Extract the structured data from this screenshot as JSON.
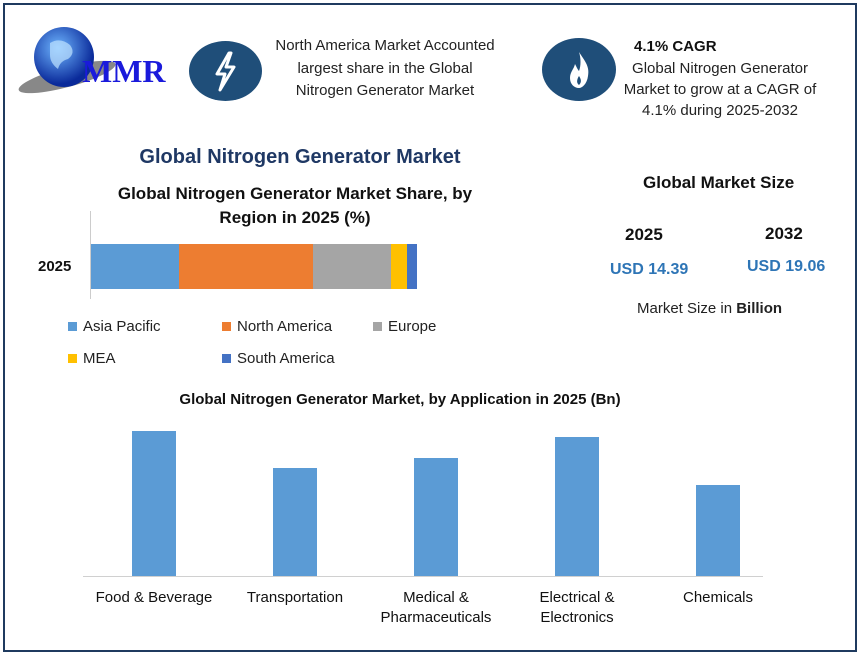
{
  "logo": {
    "text": "MMR"
  },
  "highlight1": {
    "icon": "lightning-icon",
    "text": "North America Market Accounted largest share in the Global Nitrogen Generator Market"
  },
  "highlight2": {
    "icon": "flame-icon",
    "title": "4.1% CAGR",
    "text": "Global Nitrogen Generator Market to grow at a CAGR of 4.1% during 2025-2032"
  },
  "main_title": "Global Nitrogen Generator Market",
  "market_size": {
    "title": "Global Market Size",
    "year1": "2025",
    "value1": "USD 14.39",
    "year2": "2032",
    "value2": "USD 19.06",
    "note_prefix": "Market Size in ",
    "note_bold": "Billion"
  },
  "colors": {
    "accent": "#1f4e79",
    "asia_pacific": "#5b9bd5",
    "north_america": "#ed7d31",
    "europe": "#a5a5a5",
    "mea": "#ffc000",
    "south_america": "#4472c4",
    "app_bar": "#5b9bd5"
  },
  "chart_data": [
    {
      "type": "bar",
      "orientation": "horizontal",
      "stacked": true,
      "title": "Global Nitrogen Generator Market Share, by Region in 2025 (%)",
      "categories": [
        "2025"
      ],
      "series": [
        {
          "name": "Asia Pacific",
          "values": [
            27
          ]
        },
        {
          "name": "North America",
          "values": [
            41
          ]
        },
        {
          "name": "Europe",
          "values": [
            24
          ]
        },
        {
          "name": "MEA",
          "values": [
            5
          ]
        },
        {
          "name": "South America",
          "values": [
            3
          ]
        }
      ],
      "xlim": [
        0,
        100
      ],
      "legend": "bottom",
      "grid": false
    },
    {
      "type": "bar",
      "title": "Global Nitrogen Generator Market, by Application in 2025 (Bn)",
      "categories": [
        "Food & Beverage",
        "Transportation",
        "Medical & Pharmaceuticals",
        "Electrical & Electronics",
        "Chemicals"
      ],
      "category_lines": [
        [
          "Food & Beverage"
        ],
        [
          "Transportation"
        ],
        [
          "Medical &",
          "Pharmaceuticals"
        ],
        [
          "Electrical &",
          "Electronics"
        ],
        [
          "Chemicals"
        ]
      ],
      "values": [
        3.47,
        2.59,
        2.83,
        3.33,
        2.18
      ],
      "ylim": [
        0,
        3.6
      ],
      "grid": false,
      "legend": "none"
    }
  ]
}
